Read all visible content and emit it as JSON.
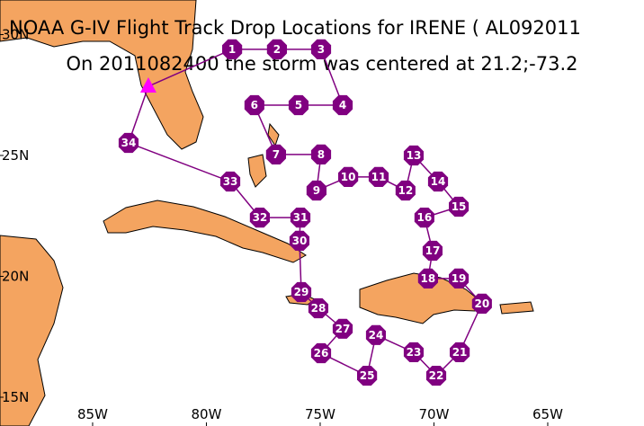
{
  "map": {
    "title": "NOAA G-IV Flight Track Drop Locations for IRENE ( AL092011",
    "subtitle": "On 2011082400 the storm was centered at 21.2;-73.2",
    "xlim": [
      -89.07,
      -60.77
    ],
    "ylim": [
      13.81,
      31.43
    ],
    "xticks": [
      {
        "value": -85,
        "label": "85W"
      },
      {
        "value": -80,
        "label": "80W"
      },
      {
        "value": -75,
        "label": "75W"
      },
      {
        "value": -70,
        "label": "70W"
      },
      {
        "value": -65,
        "label": "65W"
      }
    ],
    "yticks": [
      {
        "value": 15,
        "label": "15N"
      },
      {
        "value": 20,
        "label": "20N"
      },
      {
        "value": 25,
        "label": "25N"
      },
      {
        "value": 30,
        "label": "30N"
      }
    ],
    "track_color": "#800080",
    "base": {
      "lon": -82.55,
      "lat": 27.86,
      "color": "#ff00ff"
    },
    "drops": [
      {
        "label": "1",
        "lon": -78.87,
        "lat": 29.39
      },
      {
        "label": "2",
        "lon": -76.9,
        "lat": 29.39
      },
      {
        "label": "3",
        "lon": -74.96,
        "lat": 29.39
      },
      {
        "label": "4",
        "lon": -74.01,
        "lat": 27.08
      },
      {
        "label": "5",
        "lon": -75.95,
        "lat": 27.08
      },
      {
        "label": "6",
        "lon": -77.89,
        "lat": 27.08
      },
      {
        "label": "7",
        "lon": -76.94,
        "lat": 25.04
      },
      {
        "label": "8",
        "lon": -74.96,
        "lat": 25.04
      },
      {
        "label": "9",
        "lon": -75.16,
        "lat": 23.55
      },
      {
        "label": "10",
        "lon": -73.77,
        "lat": 24.11
      },
      {
        "label": "11",
        "lon": -72.43,
        "lat": 24.11
      },
      {
        "label": "12",
        "lon": -71.25,
        "lat": 23.55
      },
      {
        "label": "13",
        "lon": -70.89,
        "lat": 25.0
      },
      {
        "label": "14",
        "lon": -69.82,
        "lat": 23.92
      },
      {
        "label": "15",
        "lon": -68.91,
        "lat": 22.88
      },
      {
        "label": "16",
        "lon": -70.42,
        "lat": 22.43
      },
      {
        "label": "17",
        "lon": -70.06,
        "lat": 21.06
      },
      {
        "label": "18",
        "lon": -70.26,
        "lat": 19.91
      },
      {
        "label": "19",
        "lon": -68.91,
        "lat": 19.91
      },
      {
        "label": "20",
        "lon": -67.89,
        "lat": 18.87
      },
      {
        "label": "21",
        "lon": -68.87,
        "lat": 16.86
      },
      {
        "label": "22",
        "lon": -69.9,
        "lat": 15.89
      },
      {
        "label": "23",
        "lon": -70.89,
        "lat": 16.86
      },
      {
        "label": "24",
        "lon": -72.55,
        "lat": 17.57
      },
      {
        "label": "25",
        "lon": -72.94,
        "lat": 15.89
      },
      {
        "label": "26",
        "lon": -74.96,
        "lat": 16.82
      },
      {
        "label": "27",
        "lon": -74.01,
        "lat": 17.83
      },
      {
        "label": "28",
        "lon": -75.08,
        "lat": 18.68
      },
      {
        "label": "29",
        "lon": -75.83,
        "lat": 19.35
      },
      {
        "label": "30",
        "lon": -75.91,
        "lat": 21.47
      },
      {
        "label": "31",
        "lon": -75.87,
        "lat": 22.43
      },
      {
        "label": "32",
        "lon": -77.65,
        "lat": 22.43
      },
      {
        "label": "33",
        "lon": -78.95,
        "lat": 23.92
      },
      {
        "label": "34",
        "lon": -83.42,
        "lat": 25.52
      }
    ]
  }
}
